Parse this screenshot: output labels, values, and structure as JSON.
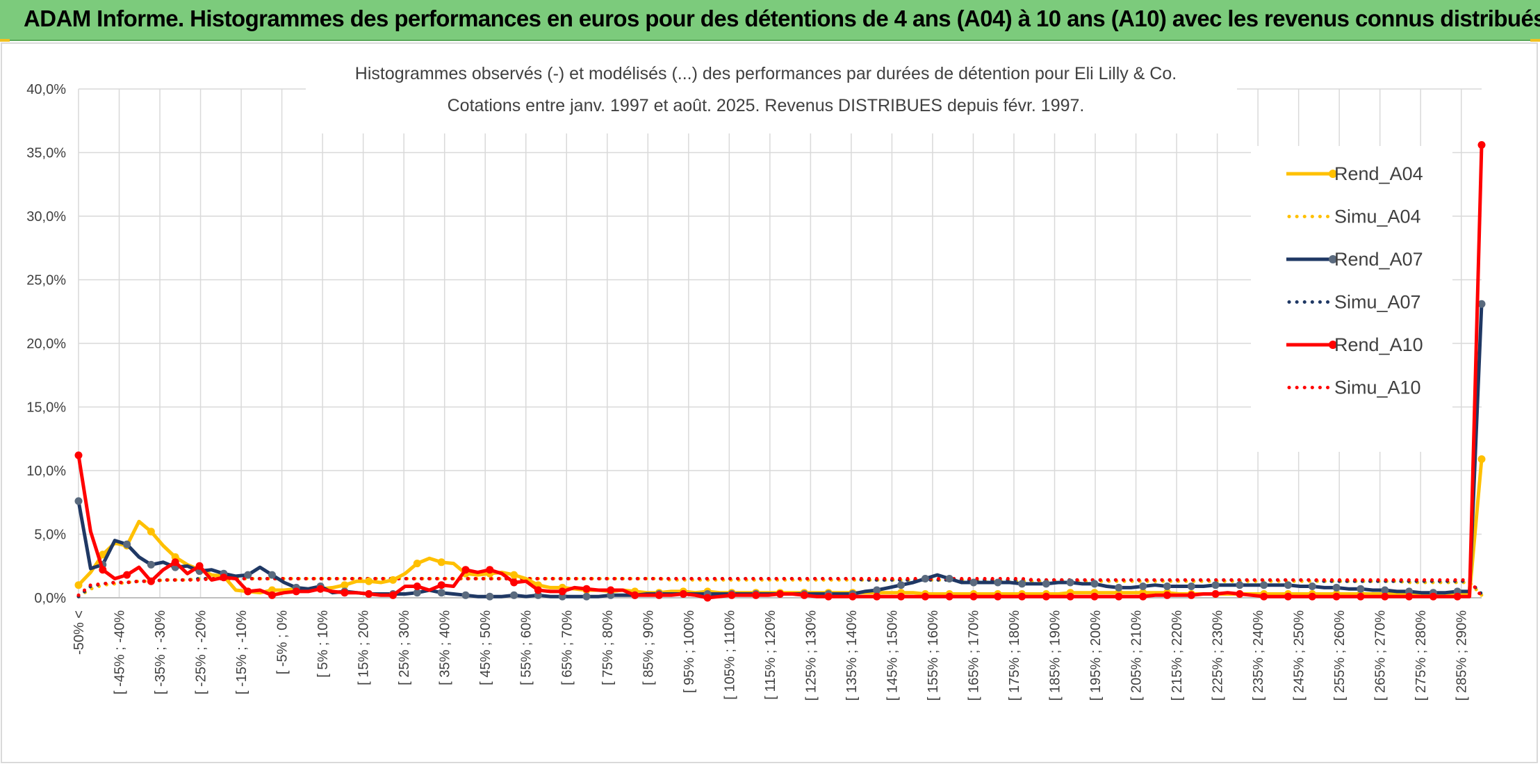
{
  "banner": {
    "title": "ADAM Informe. Histogrammes des performances en euros pour des détentions de 4 ans (A04) à 10 ans (A10) avec les revenus connus distribués"
  },
  "chart_data": {
    "type": "line",
    "title": "Histogrammes observés (-) et modélisés (...) des performances par durées de détention pour Eli Lilly & Co.",
    "subtitle": "Cotations entre janv. 1997 et août. 2025. Revenus DISTRIBUES depuis févr. 1997.",
    "ylim": [
      0,
      40
    ],
    "y_ticks": [
      "0,0%",
      "5,0%",
      "10,0%",
      "15,0%",
      "20,0%",
      "25,0%",
      "30,0%",
      "35,0%",
      "40,0%"
    ],
    "grid": true,
    "legend_position": "right",
    "x_tick_labels": [
      "-50% <",
      "[ -45% ; -40%",
      "[ -35% ; -30%",
      "[ -25% ; -20%",
      "[ -15% ; -10%",
      "[ -5% ; 0%",
      "[ 5% ; 10%",
      "[ 15% ; 20%",
      "[ 25% ; 30%",
      "[ 35% ; 40%",
      "[ 45% ; 50%",
      "[ 55% ; 60%",
      "[ 65% ; 70%",
      "[ 75% ; 80%",
      "[ 85% ; 90%",
      "[ 95% ; 100%",
      "[ 105% ; 110%",
      "[ 115% ; 120%",
      "[ 125% ; 130%",
      "[ 135% ; 140%",
      "[ 145% ; 150%",
      "[ 155% ; 160%",
      "[ 165% ; 170%",
      "[ 175% ; 180%",
      "[ 185% ; 190%",
      "[ 195% ; 200%",
      "[ 205% ; 210%",
      "[ 215% ; 220%",
      "[ 225% ; 230%",
      "[ 235% ; 240%",
      "[ 245% ; 250%",
      "[ 255% ; 260%",
      "[ 265% ; 270%",
      "[ 275% ; 280%",
      "[ 285% ; 290%"
    ],
    "series": [
      {
        "name": "Rend_A04",
        "color": "#ffc000",
        "style": "solid",
        "values": [
          1.0,
          2.0,
          3.4,
          4.3,
          4.1,
          6.0,
          5.2,
          4.1,
          3.2,
          2.6,
          2.2,
          1.8,
          1.7,
          0.6,
          0.5,
          0.4,
          0.6,
          0.6,
          0.7,
          0.6,
          0.7,
          0.8,
          1.0,
          1.3,
          1.3,
          1.2,
          1.4,
          1.9,
          2.7,
          3.1,
          2.8,
          2.7,
          1.9,
          1.8,
          1.9,
          2.0,
          1.8,
          1.5,
          1.0,
          0.8,
          0.8,
          0.7,
          0.6,
          0.6,
          0.5,
          0.6,
          0.5,
          0.4,
          0.4,
          0.5,
          0.5,
          0.4,
          0.5,
          0.4,
          0.4,
          0.4,
          0.4,
          0.4,
          0.4,
          0.4,
          0.4,
          0.4,
          0.4,
          0.4,
          0.4,
          0.4,
          0.4,
          0.4,
          0.4,
          0.4,
          0.3,
          0.3,
          0.3,
          0.3,
          0.3,
          0.3,
          0.3,
          0.3,
          0.3,
          0.3,
          0.3,
          0.3,
          0.4,
          0.4,
          0.4,
          0.4,
          0.4,
          0.4,
          0.4,
          0.4,
          0.4,
          0.3,
          0.3,
          0.3,
          0.3,
          0.3,
          0.3,
          0.3,
          0.3,
          0.3,
          0.3,
          0.3,
          0.3,
          0.3,
          0.3,
          0.3,
          0.3,
          0.3,
          0.3,
          0.3,
          0.3,
          0.3,
          0.3,
          0.3,
          0.3,
          0.3,
          10.9
        ]
      },
      {
        "name": "Simu_A04",
        "color": "#ffc000",
        "style": "dotted",
        "values": [
          0.1,
          0.7,
          1.0,
          1.1,
          1.2,
          1.3,
          1.3,
          1.4,
          1.4,
          1.4,
          1.5,
          1.5,
          1.5,
          1.5,
          1.5,
          1.5,
          1.5,
          1.5,
          1.5,
          1.5,
          1.5,
          1.5,
          1.5,
          1.5,
          1.5,
          1.5,
          1.5,
          1.5,
          1.5,
          1.5,
          1.5,
          1.5,
          1.5,
          1.5,
          1.5,
          1.5,
          1.5,
          1.5,
          1.5,
          1.5,
          1.5,
          1.5,
          1.5,
          1.5,
          1.5,
          1.5,
          1.5,
          1.5,
          1.5,
          1.4,
          1.4,
          1.4,
          1.4,
          1.4,
          1.4,
          1.4,
          1.4,
          1.4,
          1.4,
          1.4,
          1.4,
          1.4,
          1.4,
          1.4,
          1.4,
          1.4,
          1.4,
          1.4,
          1.4,
          1.4,
          1.4,
          1.4,
          1.4,
          1.4,
          1.3,
          1.3,
          1.3,
          1.3,
          1.3,
          1.3,
          1.3,
          1.3,
          1.3,
          1.3,
          1.3,
          1.3,
          1.3,
          1.3,
          1.3,
          1.3,
          1.3,
          1.3,
          1.3,
          1.3,
          1.3,
          1.3,
          1.3,
          1.3,
          1.3,
          1.3,
          1.3,
          1.3,
          1.3,
          1.3,
          1.3,
          1.3,
          1.3,
          1.3,
          1.3,
          1.3,
          1.2,
          1.2,
          1.2,
          1.2,
          1.2,
          1.2,
          0.2
        ]
      },
      {
        "name": "Rend_A07",
        "color": "#1f3864",
        "style": "solid",
        "values": [
          7.6,
          2.3,
          2.6,
          4.5,
          4.2,
          3.2,
          2.6,
          2.8,
          2.4,
          2.5,
          2.1,
          2.2,
          1.9,
          1.7,
          1.8,
          2.4,
          1.8,
          1.2,
          0.8,
          0.7,
          0.9,
          0.4,
          0.5,
          0.4,
          0.3,
          0.3,
          0.3,
          0.3,
          0.4,
          0.6,
          0.4,
          0.3,
          0.2,
          0.1,
          0.1,
          0.1,
          0.2,
          0.1,
          0.2,
          0.1,
          0.1,
          0.1,
          0.1,
          0.1,
          0.2,
          0.2,
          0.2,
          0.3,
          0.3,
          0.3,
          0.3,
          0.3,
          0.3,
          0.3,
          0.3,
          0.3,
          0.3,
          0.3,
          0.3,
          0.3,
          0.3,
          0.3,
          0.3,
          0.3,
          0.3,
          0.5,
          0.6,
          0.8,
          1.0,
          1.2,
          1.5,
          1.8,
          1.5,
          1.2,
          1.2,
          1.2,
          1.2,
          1.2,
          1.1,
          1.1,
          1.1,
          1.2,
          1.2,
          1.1,
          1.1,
          0.9,
          0.8,
          0.8,
          0.9,
          1.0,
          0.9,
          0.9,
          0.9,
          0.9,
          1.0,
          1.0,
          1.0,
          1.0,
          1.0,
          1.0,
          1.0,
          0.9,
          0.9,
          0.8,
          0.8,
          0.7,
          0.7,
          0.6,
          0.6,
          0.5,
          0.5,
          0.4,
          0.4,
          0.4,
          0.5,
          0.5,
          23.1
        ]
      },
      {
        "name": "Simu_A07",
        "color": "#1f3864",
        "style": "dotted",
        "values": [
          0.1,
          0.9,
          1.1,
          1.2,
          1.2,
          1.3,
          1.3,
          1.4,
          1.4,
          1.4,
          1.5,
          1.5,
          1.5,
          1.5,
          1.5,
          1.5,
          1.5,
          1.5,
          1.5,
          1.5,
          1.5,
          1.5,
          1.5,
          1.5,
          1.5,
          1.5,
          1.5,
          1.5,
          1.5,
          1.5,
          1.5,
          1.5,
          1.5,
          1.5,
          1.5,
          1.5,
          1.5,
          1.5,
          1.5,
          1.5,
          1.5,
          1.5,
          1.5,
          1.5,
          1.5,
          1.5,
          1.5,
          1.5,
          1.5,
          1.5,
          1.5,
          1.5,
          1.5,
          1.5,
          1.5,
          1.5,
          1.5,
          1.5,
          1.5,
          1.5,
          1.5,
          1.5,
          1.5,
          1.5,
          1.5,
          1.4,
          1.4,
          1.4,
          1.4,
          1.4,
          1.4,
          1.4,
          1.4,
          1.4,
          1.4,
          1.4,
          1.4,
          1.4,
          1.4,
          1.4,
          1.4,
          1.4,
          1.4,
          1.4,
          1.4,
          1.4,
          1.4,
          1.4,
          1.4,
          1.4,
          1.4,
          1.4,
          1.4,
          1.4,
          1.4,
          1.4,
          1.4,
          1.4,
          1.4,
          1.4,
          1.4,
          1.4,
          1.4,
          1.3,
          1.3,
          1.3,
          1.3,
          1.3,
          1.3,
          1.3,
          1.3,
          1.3,
          1.3,
          1.3,
          1.3,
          1.3,
          0.3
        ]
      },
      {
        "name": "Rend_A10",
        "color": "#ff0000",
        "style": "solid",
        "values": [
          11.2,
          5.2,
          2.2,
          1.5,
          1.8,
          2.4,
          1.3,
          2.2,
          2.8,
          1.9,
          2.5,
          1.4,
          1.6,
          1.5,
          0.5,
          0.6,
          0.2,
          0.4,
          0.5,
          0.5,
          0.7,
          0.5,
          0.4,
          0.4,
          0.3,
          0.2,
          0.2,
          0.9,
          0.9,
          0.6,
          1.0,
          0.9,
          2.2,
          2.0,
          2.2,
          1.9,
          1.2,
          1.3,
          0.6,
          0.5,
          0.5,
          0.8,
          0.7,
          0.6,
          0.6,
          0.6,
          0.2,
          0.2,
          0.2,
          0.2,
          0.3,
          0.2,
          0.0,
          0.1,
          0.2,
          0.2,
          0.2,
          0.2,
          0.3,
          0.3,
          0.2,
          0.1,
          0.1,
          0.1,
          0.1,
          0.1,
          0.1,
          0.1,
          0.1,
          0.1,
          0.1,
          0.1,
          0.1,
          0.1,
          0.1,
          0.1,
          0.1,
          0.1,
          0.1,
          0.1,
          0.1,
          0.1,
          0.1,
          0.1,
          0.1,
          0.1,
          0.1,
          0.1,
          0.1,
          0.2,
          0.2,
          0.2,
          0.2,
          0.3,
          0.3,
          0.4,
          0.3,
          0.2,
          0.1,
          0.1,
          0.1,
          0.1,
          0.1,
          0.1,
          0.1,
          0.1,
          0.1,
          0.1,
          0.1,
          0.1,
          0.1,
          0.1,
          0.1,
          0.1,
          0.1,
          0.1,
          35.6
        ]
      },
      {
        "name": "Simu_A10",
        "color": "#ff0000",
        "style": "dotted",
        "values": [
          0.2,
          1.0,
          1.1,
          1.2,
          1.2,
          1.3,
          1.3,
          1.4,
          1.4,
          1.4,
          1.4,
          1.5,
          1.5,
          1.5,
          1.5,
          1.5,
          1.5,
          1.5,
          1.5,
          1.5,
          1.5,
          1.5,
          1.5,
          1.5,
          1.5,
          1.5,
          1.5,
          1.5,
          1.5,
          1.5,
          1.5,
          1.5,
          1.5,
          1.5,
          1.5,
          1.5,
          1.5,
          1.5,
          1.5,
          1.5,
          1.5,
          1.5,
          1.5,
          1.5,
          1.5,
          1.5,
          1.5,
          1.5,
          1.5,
          1.5,
          1.5,
          1.5,
          1.5,
          1.5,
          1.5,
          1.5,
          1.5,
          1.5,
          1.5,
          1.5,
          1.5,
          1.5,
          1.5,
          1.5,
          1.5,
          1.5,
          1.5,
          1.5,
          1.5,
          1.5,
          1.5,
          1.5,
          1.5,
          1.5,
          1.5,
          1.5,
          1.5,
          1.5,
          1.5,
          1.4,
          1.4,
          1.4,
          1.4,
          1.4,
          1.4,
          1.4,
          1.4,
          1.4,
          1.4,
          1.4,
          1.4,
          1.4,
          1.4,
          1.4,
          1.4,
          1.4,
          1.4,
          1.4,
          1.4,
          1.4,
          1.4,
          1.4,
          1.4,
          1.4,
          1.4,
          1.4,
          1.4,
          1.4,
          1.4,
          1.4,
          1.4,
          1.4,
          1.4,
          1.4,
          1.4,
          1.4,
          0.1
        ]
      }
    ]
  }
}
